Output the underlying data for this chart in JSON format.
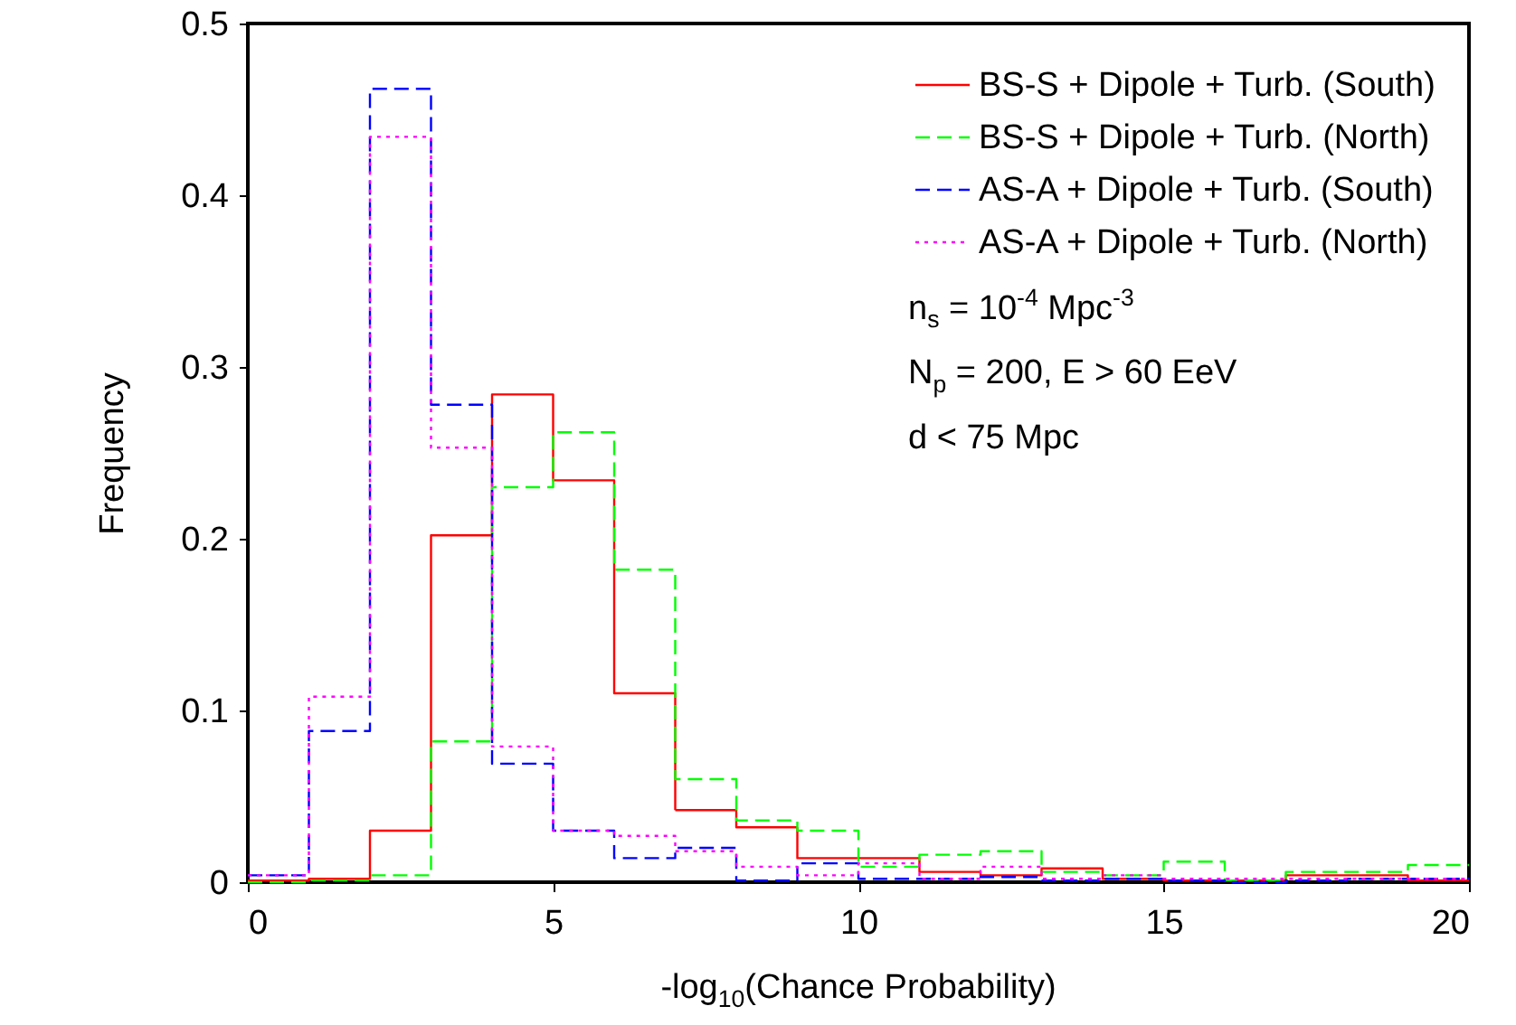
{
  "chart_data": {
    "type": "histogram",
    "xlabel": "-log$_{10}$(Chance Probability)",
    "ylabel": "Frequency",
    "bins": [
      0,
      1,
      2,
      3,
      4,
      5,
      6,
      7,
      8,
      9,
      10,
      11,
      12,
      13,
      14,
      15,
      16,
      17,
      18,
      19,
      20
    ],
    "series": [
      {
        "name": "BS-S + Dipole + Turb. (South)",
        "color": "#ff0000",
        "line_style": "solid",
        "values": [
          0.001,
          0.002,
          0.03,
          0.202,
          0.284,
          0.234,
          0.11,
          0.042,
          0.032,
          0.014,
          0.014,
          0.006,
          0.004,
          0.008,
          0.002,
          0.001,
          0.001,
          0.004,
          0.004,
          0.001
        ]
      },
      {
        "name": "BS-S + Dipole + Turb. (North)",
        "color": "#00ff00",
        "line_style": "dashed",
        "values": [
          0,
          0.001,
          0.004,
          0.082,
          0.23,
          0.262,
          0.182,
          0.06,
          0.036,
          0.03,
          0.009,
          0.016,
          0.018,
          0.006,
          0.004,
          0.012,
          0.001,
          0.006,
          0.006,
          0.01
        ]
      },
      {
        "name": "AS-A + Dipole + Turb. (South)",
        "color": "#0000ff",
        "line_style": "dashed",
        "values": [
          0.004,
          0.088,
          0.462,
          0.278,
          0.069,
          0.03,
          0.014,
          0.02,
          0.001,
          0.011,
          0.002,
          0.002,
          0.003,
          0.001,
          0.002,
          0.001,
          0,
          0.001,
          0.002,
          0.002
        ]
      },
      {
        "name": "AS-A + Dipole + Turb. (North)",
        "color": "#ff00ff",
        "line_style": "dotted",
        "values": [
          0.004,
          0.108,
          0.434,
          0.253,
          0.079,
          0.03,
          0.027,
          0.018,
          0.009,
          0.004,
          0.011,
          0.002,
          0.009,
          0.002,
          0.004,
          0.002,
          0.002,
          0.002,
          0.002,
          0.002
        ]
      }
    ],
    "xlim": [
      0,
      20
    ],
    "xticks": [
      0,
      5,
      10,
      15,
      20
    ],
    "ylim": [
      0,
      0.5
    ],
    "yticks": [
      0,
      0.1,
      0.2,
      0.3,
      0.4,
      0.5
    ],
    "grid": false,
    "legend": "top right",
    "annotations": [
      "n$_{s}$ = 10$^{-4}$ Mpc$^{-3}$",
      "N$_{p}$ = 200, E > 60 EeV",
      "d < 75 Mpc"
    ]
  }
}
